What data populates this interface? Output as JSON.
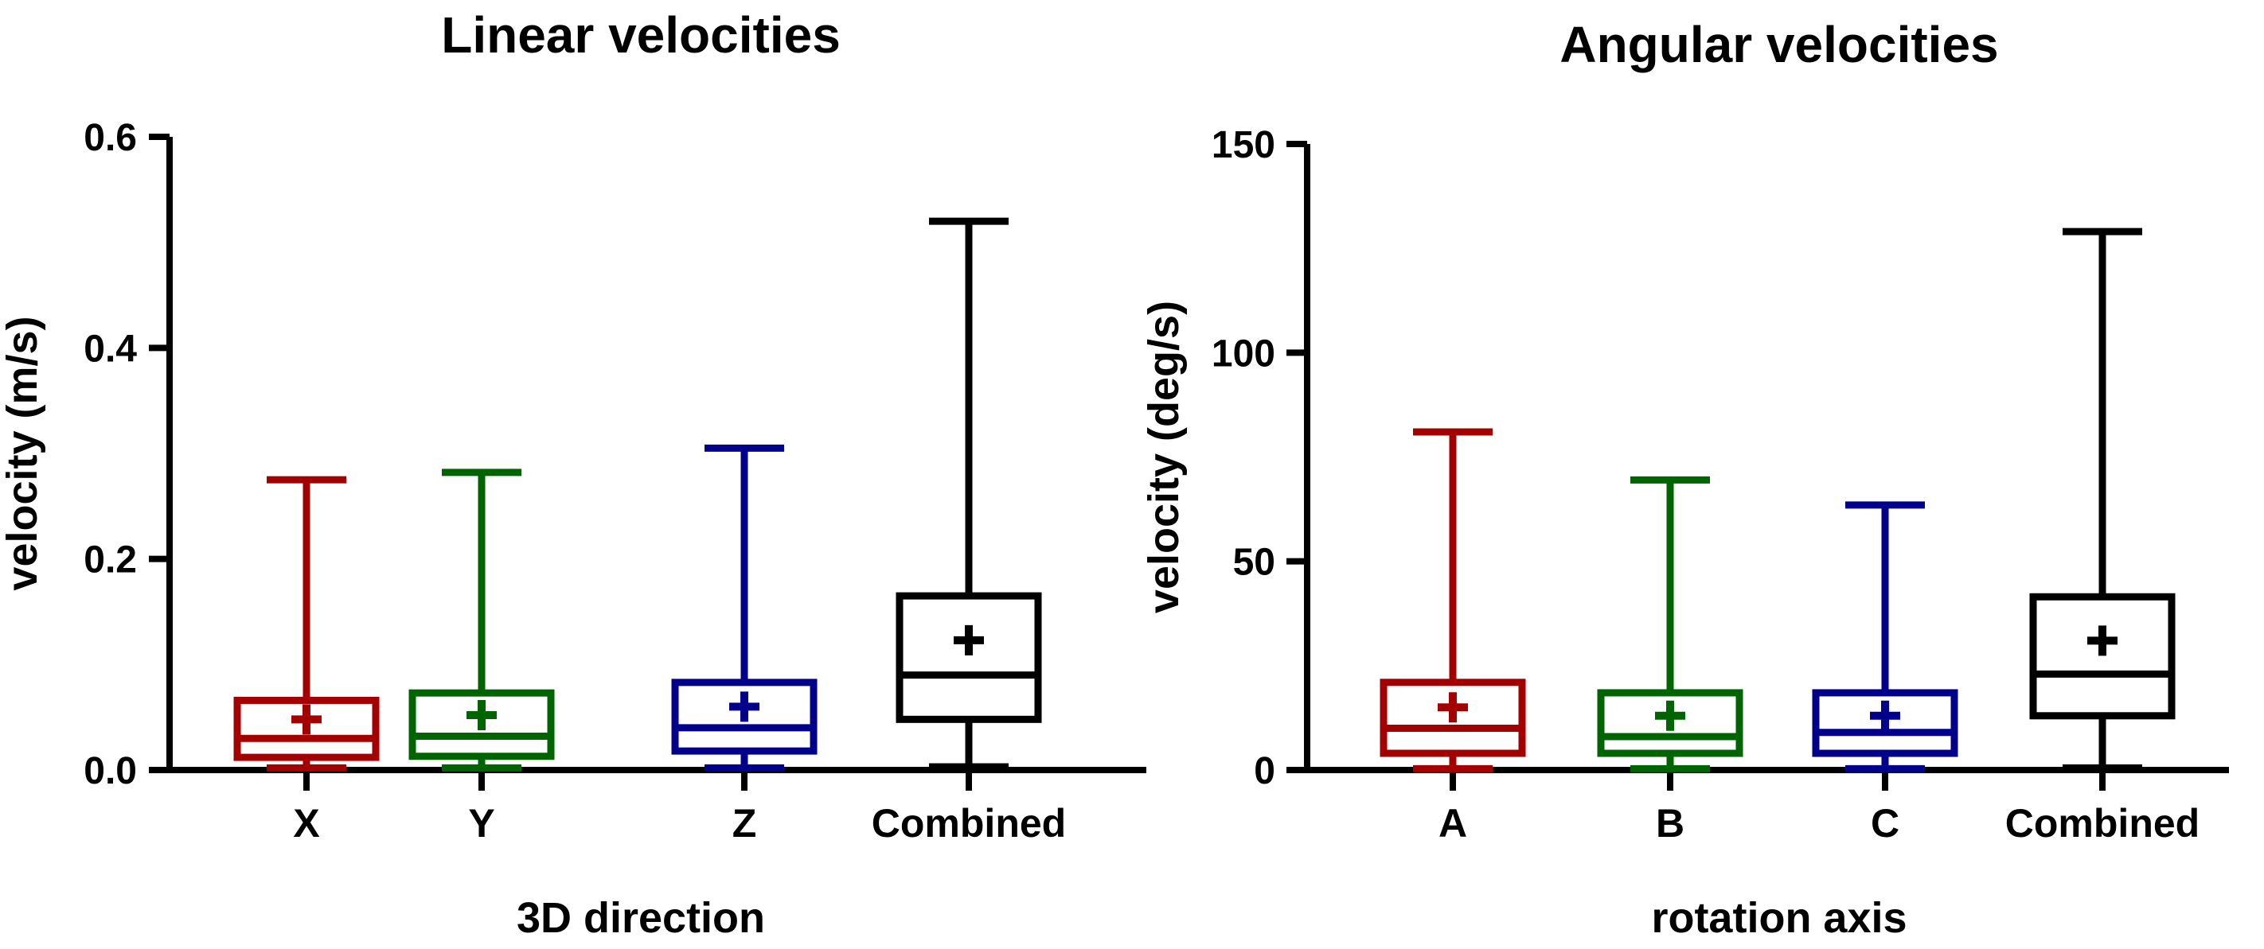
{
  "chart_data": [
    {
      "type": "box",
      "title": "Linear velocities",
      "xlabel": "3D direction",
      "ylabel": "velocity (m/s)",
      "ylim": [
        0,
        0.6
      ],
      "yticks": [
        0.0,
        0.2,
        0.4,
        0.6
      ],
      "ytick_labels": [
        "0.0",
        "0.2",
        "0.4",
        "0.6"
      ],
      "categories": [
        "X",
        "Y",
        "Z",
        "Combined"
      ],
      "colors": [
        "#a30000",
        "#006400",
        "#00008b",
        "#000000"
      ],
      "boxes": [
        {
          "category": "X",
          "min": 0.002,
          "q1": 0.012,
          "median": 0.03,
          "q3": 0.066,
          "max": 0.275,
          "mean": 0.048
        },
        {
          "category": "Y",
          "min": 0.002,
          "q1": 0.013,
          "median": 0.032,
          "q3": 0.073,
          "max": 0.282,
          "mean": 0.052
        },
        {
          "category": "Z",
          "min": 0.002,
          "q1": 0.018,
          "median": 0.04,
          "q3": 0.083,
          "max": 0.305,
          "mean": 0.06
        },
        {
          "category": "Combined",
          "min": 0.003,
          "q1": 0.048,
          "median": 0.09,
          "q3": 0.165,
          "max": 0.52,
          "mean": 0.123
        }
      ]
    },
    {
      "type": "box",
      "title": "Angular velocities",
      "xlabel": "rotation axis",
      "ylabel": "velocity (deg/s)",
      "ylim": [
        0,
        150
      ],
      "yticks": [
        0,
        50,
        100,
        150
      ],
      "ytick_labels": [
        "0",
        "50",
        "100",
        "150"
      ],
      "categories": [
        "A",
        "B",
        "C",
        "Combined"
      ],
      "colors": [
        "#a30000",
        "#006400",
        "#00008b",
        "#000000"
      ],
      "boxes": [
        {
          "category": "A",
          "min": 0.3,
          "q1": 4,
          "median": 10,
          "q3": 21,
          "max": 81,
          "mean": 15
        },
        {
          "category": "B",
          "min": 0.3,
          "q1": 4,
          "median": 8,
          "q3": 18.5,
          "max": 69.5,
          "mean": 13
        },
        {
          "category": "C",
          "min": 0.3,
          "q1": 4,
          "median": 9,
          "q3": 18.5,
          "max": 63.5,
          "mean": 13
        },
        {
          "category": "Combined",
          "min": 0.5,
          "q1": 13,
          "median": 23,
          "q3": 41.5,
          "max": 129,
          "mean": 31
        }
      ]
    }
  ]
}
